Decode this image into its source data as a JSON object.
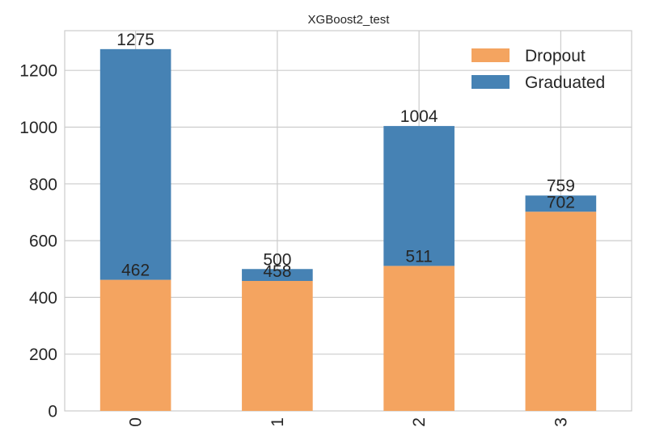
{
  "chart_data": {
    "type": "bar",
    "stacked": true,
    "title": "XGBoost2_test",
    "xlabel": "",
    "ylabel": "",
    "categories": [
      "0",
      "1",
      "2",
      "3"
    ],
    "series": [
      {
        "name": "Dropout",
        "values": [
          462,
          458,
          511,
          702
        ],
        "color": "#f4a460"
      },
      {
        "name": "Graduated",
        "values": [
          813,
          42,
          493,
          57
        ],
        "color": "#4682b4"
      }
    ],
    "segment_labels": [
      {
        "category": "0",
        "labels": [
          "462",
          "1275"
        ]
      },
      {
        "category": "1",
        "labels": [
          "458",
          "500"
        ]
      },
      {
        "category": "2",
        "labels": [
          "511",
          "1004"
        ]
      },
      {
        "category": "3",
        "labels": [
          "702",
          "759"
        ]
      }
    ],
    "ylim": [
      0,
      1340
    ],
    "yticks": [
      0,
      200,
      400,
      600,
      800,
      1000,
      1200
    ],
    "grid": true,
    "legend": {
      "position": "top-right",
      "entries": [
        "Dropout",
        "Graduated"
      ]
    },
    "x_tick_rotation_deg": 90
  }
}
